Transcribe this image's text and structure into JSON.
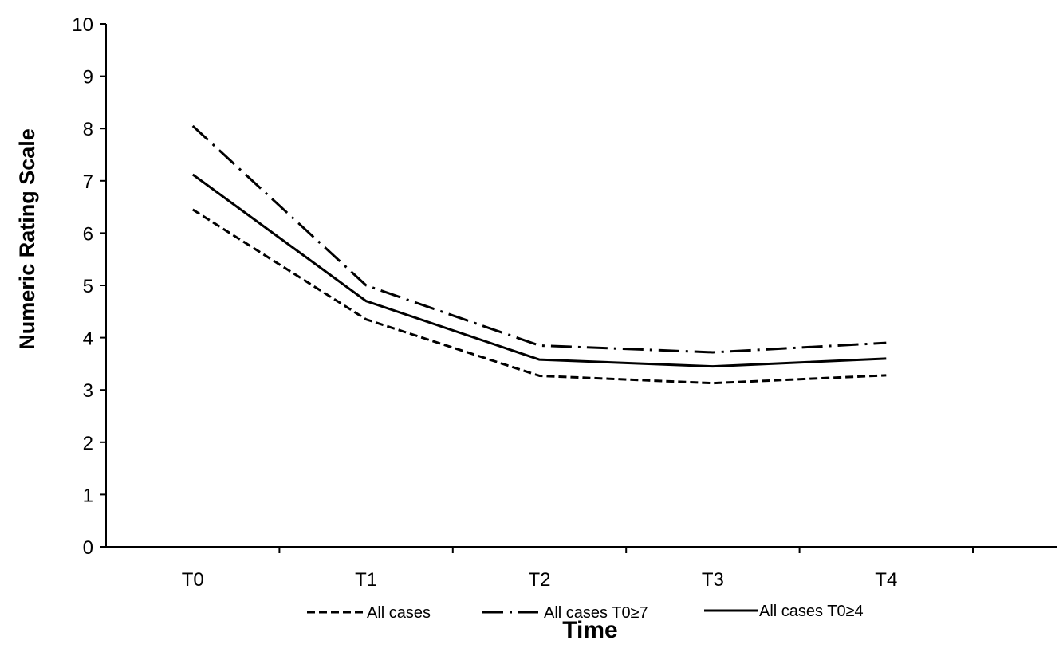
{
  "chart_data": {
    "type": "line",
    "xlabel": "Time",
    "ylabel": "Numeric Rating Scale",
    "categories": [
      "T0",
      "T1",
      "T2",
      "T3",
      "T4"
    ],
    "ylim": [
      0,
      10
    ],
    "yticks": [
      0,
      1,
      2,
      3,
      4,
      5,
      6,
      7,
      8,
      9,
      10
    ],
    "grid": false,
    "legend_position": "bottom",
    "series": [
      {
        "name": "All cases",
        "line_style": "dashed",
        "values": [
          6.45,
          4.35,
          3.27,
          3.13,
          3.28
        ]
      },
      {
        "name": "All cases T0≥7",
        "line_style": "dash-dot",
        "values": [
          8.05,
          5.0,
          3.85,
          3.72,
          3.9
        ]
      },
      {
        "name": "All cases T0≥4",
        "line_style": "solid",
        "values": [
          7.12,
          4.7,
          3.58,
          3.45,
          3.6
        ]
      }
    ]
  }
}
